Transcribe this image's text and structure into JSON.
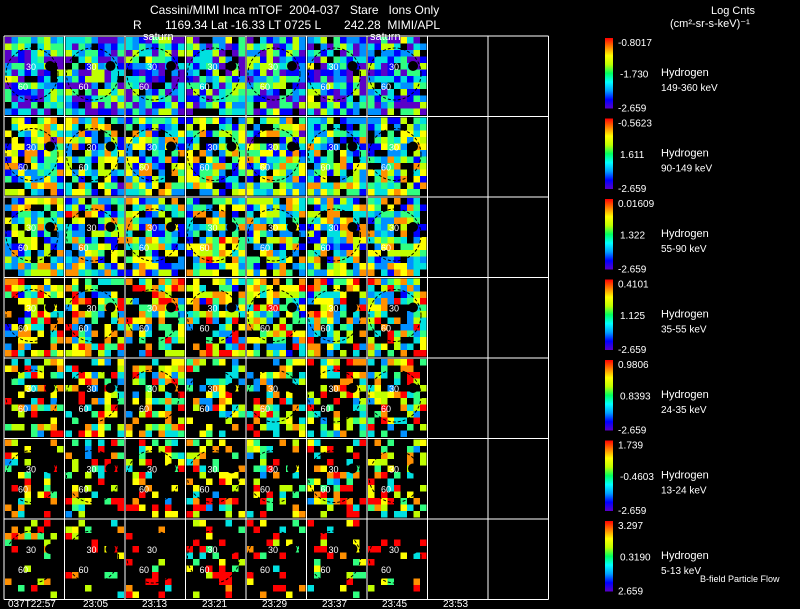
{
  "header": {
    "title": "Cassini/MIMI Inca mTOF  2004-037   Stare   Ions Only",
    "ephemeris": "R       1169.34 Lat -16.33 LT 0725 L       242.28  MIMI/APL",
    "colorbar_title": "Log Cnts",
    "colorbar_units": "(cm²-sr-s-keV)⁻¹"
  },
  "overlay_labels": {
    "saturn": "saturn"
  },
  "frame_marks": {
    "ring_inner": "30",
    "ring_outer": "60"
  },
  "footer": {
    "flow_label": "B-field Particle Flow"
  },
  "colors": {
    "background": "#000000",
    "grid": "#ffffff",
    "colormap": [
      "#5a00c8",
      "#0000ff",
      "#0090ff",
      "#00e0e0",
      "#30ff80",
      "#c0ff00",
      "#ffff00",
      "#ff9000",
      "#ff0000"
    ]
  },
  "chart_data": {
    "type": "heatmap",
    "time_labels": [
      "037T22:57",
      "23:05",
      "23:13",
      "23:21",
      "23:29",
      "23:37",
      "23:45",
      "23:53"
    ],
    "channels": [
      {
        "species": "Hydrogen",
        "energy": "149-360 keV",
        "max": "-0.8017",
        "mid": "-1.730",
        "min": "-2.659",
        "fill": 0.3,
        "coverage": 0.92
      },
      {
        "species": "Hydrogen",
        "energy": "90-149 keV",
        "max": "-0.5623",
        "mid": "1.611",
        "min": "-2.659",
        "fill": 0.48,
        "coverage": 0.85
      },
      {
        "species": "Hydrogen",
        "energy": "55-90 keV",
        "max": "0.01609",
        "mid": "1.322",
        "min": "-2.659",
        "fill": 0.52,
        "coverage": 0.82
      },
      {
        "species": "Hydrogen",
        "energy": "35-55 keV",
        "max": "0.4101",
        "mid": "1.125",
        "min": "-2.659",
        "fill": 0.58,
        "coverage": 0.72
      },
      {
        "species": "Hydrogen",
        "energy": "24-35 keV",
        "max": "0.9806",
        "mid": "0.8393",
        "min": "-2.659",
        "fill": 0.62,
        "coverage": 0.5
      },
      {
        "species": "Hydrogen",
        "energy": "13-24 keV",
        "max": "1.739",
        "mid": "-0.4603",
        "min": "-2.659",
        "fill": 0.68,
        "coverage": 0.38
      },
      {
        "species": "Hydrogen",
        "energy": "5-13 keV",
        "max": "3.297",
        "mid": "0.3190",
        "min": "2.659",
        "fill": 0.75,
        "coverage": 0.2
      }
    ],
    "populated_columns": 7,
    "total_columns": 9
  }
}
